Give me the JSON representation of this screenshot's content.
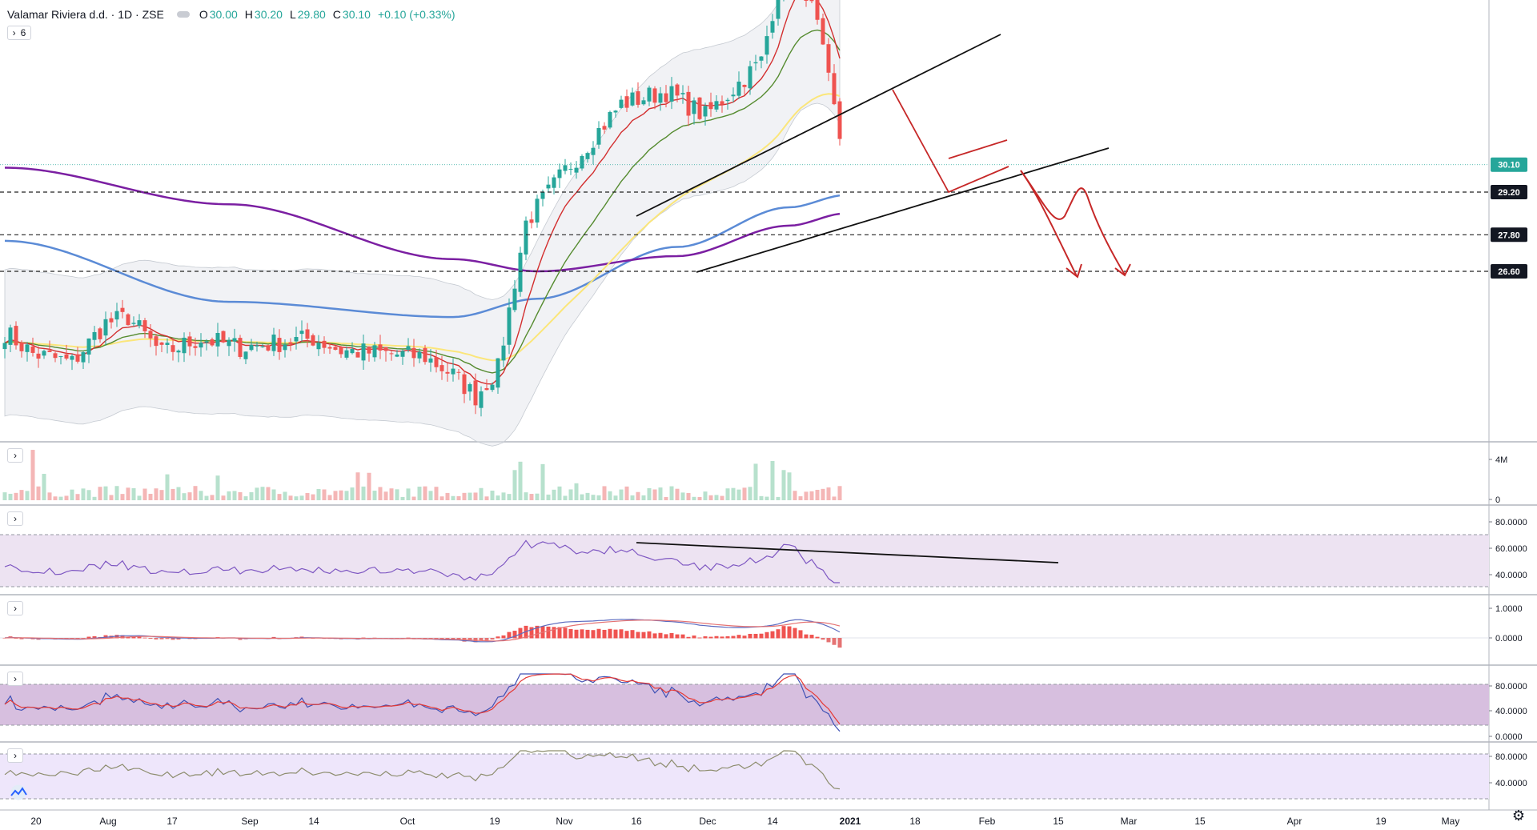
{
  "header": {
    "symbol": "Valamar Riviera d.d.",
    "interval": "1D",
    "exchange": "ZSE",
    "open_label": "O",
    "open": "30.00",
    "high_label": "H",
    "high": "30.20",
    "low_label": "L",
    "low": "29.80",
    "close_label": "C",
    "close": "30.10",
    "change": "+0.10 (+0.33%)",
    "collapsed_count": "6"
  },
  "colors": {
    "up": "#26a69a",
    "down": "#ef5350",
    "ema_red": "#d32f2f",
    "ema_green": "#558b2f",
    "ema_yellow": "#fbe67a",
    "ma_blue": "#5b8bd6",
    "ma_purple": "#7b1fa2",
    "trendline": "#111111",
    "projection": "#c62828"
  },
  "chart_data": [
    {
      "type": "candlestick",
      "pane": "price",
      "price_scale": {
        "label_range": [
          26.6,
          30.1
        ]
      },
      "current_price": 30.1,
      "horizontal_levels": [
        29.2,
        27.8,
        26.6
      ],
      "x_tick_labels": [
        "20",
        "Aug",
        "17",
        "Sep",
        "14",
        "Oct",
        "19",
        "Nov",
        "16",
        "Dec",
        "14",
        "2021",
        "18",
        "Feb",
        "15",
        "Mar",
        "15",
        "Apr",
        "19",
        "May"
      ],
      "annotations": [
        "rising wedge trendlines",
        "projected decline to 26.60"
      ]
    },
    {
      "type": "bar",
      "pane": "volume",
      "y_tick_labels": [
        "4M",
        "0"
      ]
    },
    {
      "type": "line",
      "pane": "rsi",
      "y_tick_labels": [
        "80.0000",
        "60.0000",
        "40.0000"
      ],
      "bands": [
        70,
        30
      ],
      "annotations": [
        "descending trendline"
      ]
    },
    {
      "type": "line",
      "pane": "macd",
      "y_tick_labels": [
        "1.0000",
        "0.0000"
      ]
    },
    {
      "type": "line",
      "pane": "stochastic",
      "y_tick_labels": [
        "80.0000",
        "40.0000",
        "0.0000"
      ],
      "bands": [
        80,
        20
      ]
    },
    {
      "type": "line",
      "pane": "oscillator",
      "y_tick_labels": [
        "80.0000",
        "40.0000"
      ],
      "bands": [
        80,
        20
      ]
    }
  ],
  "icons": {
    "settings": "gear-icon",
    "logo": "logo-icon",
    "collapse": "chevron-right-icon"
  }
}
